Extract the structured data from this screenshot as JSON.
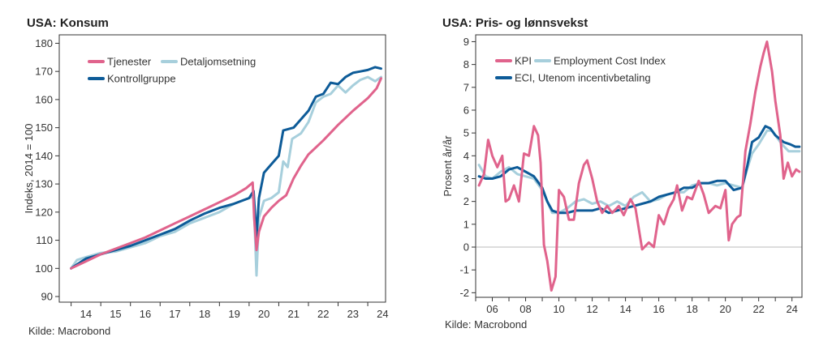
{
  "chart_data": [
    {
      "type": "line",
      "title": "USA: Konsum",
      "xlabel": "",
      "ylabel": "Indeks, 2014 = 100",
      "ylim": [
        88,
        183
      ],
      "yticks": [
        90,
        100,
        110,
        120,
        130,
        140,
        150,
        160,
        170,
        180
      ],
      "xlim": [
        2013.6,
        2024.6
      ],
      "xtick_labels": [
        "14",
        "15",
        "16",
        "17",
        "18",
        "19",
        "20",
        "21",
        "22",
        "23",
        "24"
      ],
      "legend_location": "top-left",
      "source": "Kilde: Macrobond",
      "series": [
        {
          "name": "Tjenester",
          "color": "#e0638c",
          "points": [
            [
              2014.0,
              100
            ],
            [
              2014.5,
              102.5
            ],
            [
              2015.0,
              105
            ],
            [
              2015.5,
              107
            ],
            [
              2016.0,
              109
            ],
            [
              2016.5,
              111
            ],
            [
              2017.0,
              113.5
            ],
            [
              2017.5,
              116
            ],
            [
              2018.0,
              118.5
            ],
            [
              2018.5,
              121
            ],
            [
              2019.0,
              123.5
            ],
            [
              2019.5,
              126
            ],
            [
              2019.9,
              128.5
            ],
            [
              2020.12,
              130.5
            ],
            [
              2020.17,
              118
            ],
            [
              2020.25,
              106.5
            ],
            [
              2020.33,
              113
            ],
            [
              2020.5,
              118.5
            ],
            [
              2020.75,
              121.5
            ],
            [
              2021.0,
              124
            ],
            [
              2021.25,
              126
            ],
            [
              2021.5,
              132
            ],
            [
              2021.75,
              136.5
            ],
            [
              2022.0,
              140.5
            ],
            [
              2022.5,
              145.5
            ],
            [
              2023.0,
              151
            ],
            [
              2023.5,
              156
            ],
            [
              2024.0,
              160.5
            ],
            [
              2024.3,
              164
            ],
            [
              2024.45,
              167.5
            ]
          ]
        },
        {
          "name": "Detaljomsetning",
          "color": "#a7cfdc",
          "points": [
            [
              2014.0,
              100
            ],
            [
              2014.2,
              103
            ],
            [
              2014.5,
              104
            ],
            [
              2015.0,
              105.5
            ],
            [
              2015.5,
              106
            ],
            [
              2016.0,
              107.5
            ],
            [
              2016.5,
              109
            ],
            [
              2017.0,
              111.5
            ],
            [
              2017.5,
              113
            ],
            [
              2018.0,
              116
            ],
            [
              2018.5,
              118
            ],
            [
              2019.0,
              120
            ],
            [
              2019.5,
              123
            ],
            [
              2020.0,
              125
            ],
            [
              2020.15,
              125.5
            ],
            [
              2020.25,
              97.5
            ],
            [
              2020.33,
              118
            ],
            [
              2020.5,
              124
            ],
            [
              2020.75,
              125
            ],
            [
              2021.0,
              127
            ],
            [
              2021.15,
              138
            ],
            [
              2021.3,
              136
            ],
            [
              2021.45,
              146
            ],
            [
              2021.75,
              148
            ],
            [
              2022.0,
              152
            ],
            [
              2022.25,
              159
            ],
            [
              2022.5,
              161
            ],
            [
              2022.75,
              162
            ],
            [
              2023.0,
              165
            ],
            [
              2023.25,
              162.5
            ],
            [
              2023.5,
              165
            ],
            [
              2023.75,
              167
            ],
            [
              2024.0,
              168
            ],
            [
              2024.25,
              166.5
            ],
            [
              2024.45,
              168
            ]
          ]
        },
        {
          "name": "Kontrollgruppe",
          "color": "#0d5b98",
          "points": [
            [
              2014.0,
              100
            ],
            [
              2014.5,
              103.5
            ],
            [
              2015.0,
              105
            ],
            [
              2015.5,
              106.5
            ],
            [
              2016.0,
              108
            ],
            [
              2016.5,
              110
            ],
            [
              2017.0,
              112
            ],
            [
              2017.5,
              114
            ],
            [
              2018.0,
              117
            ],
            [
              2018.5,
              119.5
            ],
            [
              2019.0,
              121.5
            ],
            [
              2019.5,
              123
            ],
            [
              2020.0,
              125
            ],
            [
              2020.15,
              127.5
            ],
            [
              2020.25,
              111
            ],
            [
              2020.33,
              125
            ],
            [
              2020.5,
              134
            ],
            [
              2020.75,
              137
            ],
            [
              2021.0,
              140
            ],
            [
              2021.15,
              149
            ],
            [
              2021.5,
              150
            ],
            [
              2021.75,
              153
            ],
            [
              2022.0,
              156
            ],
            [
              2022.25,
              161
            ],
            [
              2022.5,
              162
            ],
            [
              2022.75,
              166
            ],
            [
              2023.0,
              165.5
            ],
            [
              2023.25,
              168
            ],
            [
              2023.5,
              169.5
            ],
            [
              2023.75,
              170
            ],
            [
              2024.0,
              170.5
            ],
            [
              2024.25,
              171.5
            ],
            [
              2024.45,
              171
            ]
          ]
        }
      ]
    },
    {
      "type": "line",
      "title": "USA: Pris- og lønnsvekst",
      "xlabel": "",
      "ylabel": "Prosent år/år",
      "ylim": [
        -2.2,
        9.3
      ],
      "yticks": [
        -2,
        -1,
        0,
        1,
        2,
        3,
        4,
        5,
        6,
        7,
        8,
        9
      ],
      "xlim": [
        2005.0,
        2024.6
      ],
      "xtick_labels": [
        "06",
        "08",
        "10",
        "12",
        "14",
        "16",
        "18",
        "20",
        "22",
        "24"
      ],
      "legend_location": "top-left",
      "source": "Kilde: Macrobond",
      "series": [
        {
          "name": "KPI",
          "color": "#e0638c",
          "points": [
            [
              2005.2,
              2.7
            ],
            [
              2005.5,
              3.2
            ],
            [
              2005.75,
              4.7
            ],
            [
              2006.0,
              4.0
            ],
            [
              2006.3,
              3.5
            ],
            [
              2006.6,
              4.0
            ],
            [
              2006.8,
              2.0
            ],
            [
              2007.0,
              2.1
            ],
            [
              2007.3,
              2.7
            ],
            [
              2007.6,
              2.0
            ],
            [
              2007.9,
              4.1
            ],
            [
              2008.2,
              4.0
            ],
            [
              2008.5,
              5.3
            ],
            [
              2008.75,
              4.9
            ],
            [
              2008.9,
              3.7
            ],
            [
              2009.1,
              0.1
            ],
            [
              2009.3,
              -0.6
            ],
            [
              2009.55,
              -1.9
            ],
            [
              2009.8,
              -1.3
            ],
            [
              2010.0,
              2.5
            ],
            [
              2010.3,
              2.2
            ],
            [
              2010.6,
              1.2
            ],
            [
              2010.9,
              1.2
            ],
            [
              2011.2,
              2.8
            ],
            [
              2011.5,
              3.6
            ],
            [
              2011.7,
              3.8
            ],
            [
              2012.0,
              3.0
            ],
            [
              2012.3,
              2.0
            ],
            [
              2012.6,
              1.5
            ],
            [
              2012.9,
              1.8
            ],
            [
              2013.2,
              1.5
            ],
            [
              2013.6,
              1.8
            ],
            [
              2013.9,
              1.4
            ],
            [
              2014.3,
              2.1
            ],
            [
              2014.6,
              1.7
            ],
            [
              2015.0,
              -0.1
            ],
            [
              2015.4,
              0.2
            ],
            [
              2015.7,
              0.0
            ],
            [
              2016.0,
              1.4
            ],
            [
              2016.3,
              1.0
            ],
            [
              2016.6,
              1.7
            ],
            [
              2016.9,
              2.1
            ],
            [
              2017.1,
              2.7
            ],
            [
              2017.4,
              1.6
            ],
            [
              2017.7,
              2.2
            ],
            [
              2018.0,
              2.1
            ],
            [
              2018.4,
              2.9
            ],
            [
              2018.7,
              2.3
            ],
            [
              2019.0,
              1.5
            ],
            [
              2019.4,
              1.8
            ],
            [
              2019.7,
              1.7
            ],
            [
              2020.0,
              2.5
            ],
            [
              2020.2,
              0.3
            ],
            [
              2020.4,
              1.0
            ],
            [
              2020.7,
              1.3
            ],
            [
              2020.9,
              1.4
            ],
            [
              2021.2,
              4.2
            ],
            [
              2021.5,
              5.4
            ],
            [
              2021.8,
              6.8
            ],
            [
              2022.1,
              7.9
            ],
            [
              2022.3,
              8.5
            ],
            [
              2022.5,
              9.0
            ],
            [
              2022.8,
              7.7
            ],
            [
              2023.0,
              6.4
            ],
            [
              2023.3,
              4.9
            ],
            [
              2023.5,
              3.0
            ],
            [
              2023.75,
              3.7
            ],
            [
              2024.0,
              3.1
            ],
            [
              2024.25,
              3.4
            ],
            [
              2024.45,
              3.3
            ]
          ]
        },
        {
          "name": "Employment Cost Index",
          "color": "#a7cfdc",
          "points": [
            [
              2005.2,
              3.6
            ],
            [
              2005.6,
              3.1
            ],
            [
              2006.0,
              3.0
            ],
            [
              2006.5,
              3.3
            ],
            [
              2007.0,
              3.5
            ],
            [
              2007.5,
              3.2
            ],
            [
              2008.0,
              3.1
            ],
            [
              2008.5,
              3.0
            ],
            [
              2009.0,
              2.5
            ],
            [
              2009.3,
              2.0
            ],
            [
              2009.6,
              1.5
            ],
            [
              2010.0,
              1.5
            ],
            [
              2010.5,
              1.7
            ],
            [
              2011.0,
              2.0
            ],
            [
              2011.5,
              2.1
            ],
            [
              2012.0,
              1.9
            ],
            [
              2012.5,
              2.0
            ],
            [
              2013.0,
              1.8
            ],
            [
              2013.5,
              2.0
            ],
            [
              2014.0,
              1.8
            ],
            [
              2014.5,
              2.2
            ],
            [
              2015.0,
              2.4
            ],
            [
              2015.5,
              2.0
            ],
            [
              2016.0,
              2.1
            ],
            [
              2016.5,
              2.3
            ],
            [
              2017.0,
              2.4
            ],
            [
              2017.5,
              2.4
            ],
            [
              2018.0,
              2.7
            ],
            [
              2018.5,
              2.8
            ],
            [
              2019.0,
              2.8
            ],
            [
              2019.5,
              2.7
            ],
            [
              2020.0,
              2.8
            ],
            [
              2020.5,
              2.7
            ],
            [
              2021.0,
              2.6
            ],
            [
              2021.3,
              3.4
            ],
            [
              2021.6,
              4.1
            ],
            [
              2022.0,
              4.5
            ],
            [
              2022.5,
              5.1
            ],
            [
              2022.8,
              5.1
            ],
            [
              2023.0,
              4.9
            ],
            [
              2023.4,
              4.5
            ],
            [
              2023.8,
              4.2
            ],
            [
              2024.0,
              4.2
            ],
            [
              2024.45,
              4.2
            ]
          ]
        },
        {
          "name": "ECI, Utenom incentivbetaling",
          "color": "#0d5b98",
          "points": [
            [
              2005.2,
              3.1
            ],
            [
              2005.6,
              3.0
            ],
            [
              2006.0,
              3.0
            ],
            [
              2006.5,
              3.1
            ],
            [
              2007.0,
              3.4
            ],
            [
              2007.5,
              3.5
            ],
            [
              2008.0,
              3.3
            ],
            [
              2008.5,
              3.1
            ],
            [
              2009.0,
              2.6
            ],
            [
              2009.3,
              2.0
            ],
            [
              2009.6,
              1.6
            ],
            [
              2010.0,
              1.5
            ],
            [
              2010.5,
              1.5
            ],
            [
              2011.0,
              1.6
            ],
            [
              2011.5,
              1.6
            ],
            [
              2012.0,
              1.6
            ],
            [
              2012.5,
              1.7
            ],
            [
              2013.0,
              1.5
            ],
            [
              2013.5,
              1.6
            ],
            [
              2014.0,
              1.7
            ],
            [
              2014.5,
              1.8
            ],
            [
              2015.0,
              1.9
            ],
            [
              2015.5,
              2.0
            ],
            [
              2016.0,
              2.2
            ],
            [
              2016.5,
              2.3
            ],
            [
              2017.0,
              2.4
            ],
            [
              2017.5,
              2.6
            ],
            [
              2018.0,
              2.6
            ],
            [
              2018.5,
              2.8
            ],
            [
              2019.0,
              2.8
            ],
            [
              2019.5,
              2.9
            ],
            [
              2020.0,
              2.9
            ],
            [
              2020.5,
              2.5
            ],
            [
              2021.0,
              2.6
            ],
            [
              2021.3,
              3.5
            ],
            [
              2021.6,
              4.6
            ],
            [
              2022.0,
              4.8
            ],
            [
              2022.4,
              5.3
            ],
            [
              2022.7,
              5.2
            ],
            [
              2023.0,
              4.9
            ],
            [
              2023.5,
              4.6
            ],
            [
              2023.9,
              4.5
            ],
            [
              2024.2,
              4.4
            ],
            [
              2024.45,
              4.4
            ]
          ]
        }
      ]
    }
  ]
}
